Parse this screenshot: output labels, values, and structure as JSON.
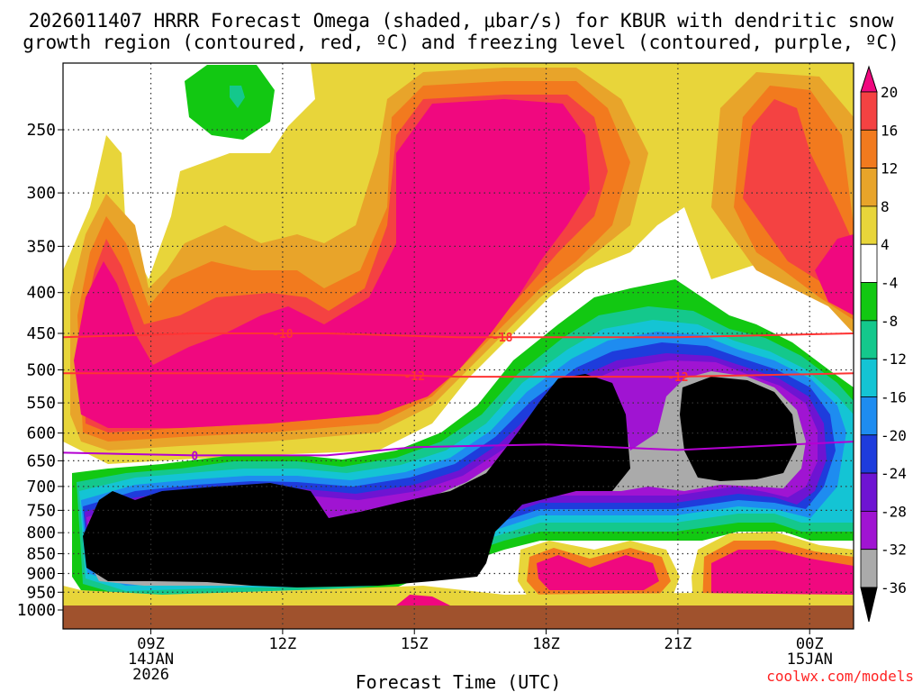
{
  "chart_data": {
    "type": "heatmap",
    "title_line1": "2026011407 HRRR Forecast Omega (shaded, μbar/s) for KBUR with dendritic snow",
    "title_line2": "growth region (contoured, red, ºC) and freezing level (contoured, purple, ºC)",
    "xlabel": "Forecast Time (UTC)",
    "credit": "coolwx.com/models",
    "x_range_hours": [
      7,
      25
    ],
    "x_ticks": [
      {
        "hour": 9,
        "label": "09Z",
        "date": "14JAN",
        "year": "2026"
      },
      {
        "hour": 12,
        "label": "12Z",
        "date": "",
        "year": ""
      },
      {
        "hour": 15,
        "label": "15Z",
        "date": "",
        "year": ""
      },
      {
        "hour": 18,
        "label": "18Z",
        "date": "",
        "year": ""
      },
      {
        "hour": 21,
        "label": "21Z",
        "date": "",
        "year": ""
      },
      {
        "hour": 24,
        "label": "00Z",
        "date": "15JAN",
        "year": ""
      }
    ],
    "y_axis": "pressure (hPa), log scale, inverted",
    "y_range_hpa": [
      200,
      1000
    ],
    "y_ticks": [
      "250",
      "300",
      "350",
      "400",
      "450",
      "500",
      "550",
      "600",
      "650",
      "700",
      "750",
      "800",
      "850",
      "900",
      "950",
      "1000"
    ],
    "colorbar_labels": [
      "20",
      "16",
      "12",
      "8",
      "4",
      "-4",
      "-8",
      "-12",
      "-16",
      "-20",
      "-24",
      "-28",
      "-32",
      "-36"
    ],
    "colorbar_bins": [
      {
        "range": [
          20,
          99
        ],
        "color": "#f0087f"
      },
      {
        "range": [
          16,
          20
        ],
        "color": "#f44242"
      },
      {
        "range": [
          12,
          16
        ],
        "color": "#f27a1e"
      },
      {
        "range": [
          8,
          12
        ],
        "color": "#e8a42a"
      },
      {
        "range": [
          4,
          8
        ],
        "color": "#e8d53a"
      },
      {
        "range": [
          -4,
          4
        ],
        "color": "#ffffff"
      },
      {
        "range": [
          -8,
          -4
        ],
        "color": "#12c812"
      },
      {
        "range": [
          -12,
          -8
        ],
        "color": "#14c88c"
      },
      {
        "range": [
          -16,
          -12
        ],
        "color": "#14c4d4"
      },
      {
        "range": [
          -20,
          -16
        ],
        "color": "#1e8cf0"
      },
      {
        "range": [
          -24,
          -20
        ],
        "color": "#1e3cdc"
      },
      {
        "range": [
          -28,
          -24
        ],
        "color": "#6e14d2"
      },
      {
        "range": [
          -32,
          -28
        ],
        "color": "#a014d2"
      },
      {
        "range": [
          -36,
          -32
        ],
        "color": "#aaaaaa"
      },
      {
        "range": [
          -99,
          -36
        ],
        "color": "#000000"
      }
    ],
    "contours": [
      {
        "name": "dendritic-minus18",
        "label": "-18",
        "color": "#ff3333",
        "hour": [
          7,
          10,
          13,
          16,
          18,
          21,
          25
        ],
        "hpa": [
          455,
          450,
          450,
          455,
          455,
          455,
          450
        ],
        "label_hours": [
          12,
          17
        ]
      },
      {
        "name": "dendritic-minus12",
        "label": "-12",
        "color": "#ff3333",
        "hour": [
          7,
          10,
          13,
          16,
          18,
          21,
          25
        ],
        "hpa": [
          505,
          505,
          505,
          510,
          510,
          510,
          505
        ],
        "label_hours": [
          15,
          21
        ]
      },
      {
        "name": "freezing-level-0",
        "label": "0",
        "color": "#b400d2",
        "hour": [
          7,
          10,
          13,
          15,
          18,
          21,
          25
        ],
        "hpa": [
          635,
          640,
          640,
          625,
          620,
          630,
          615
        ],
        "label_hours": [
          10
        ]
      }
    ]
  }
}
